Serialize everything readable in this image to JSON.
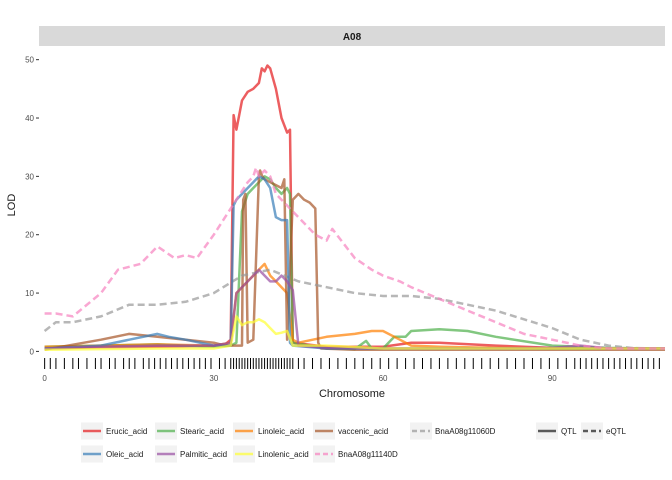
{
  "chart_data": {
    "type": "line",
    "facet_title": "A08",
    "xlabel": "Chromosome",
    "ylabel": "LOD",
    "xlim": [
      -1,
      110
    ],
    "ylim": [
      -2.5,
      52
    ],
    "x_ticks": [
      0,
      30,
      60,
      90
    ],
    "y_ticks": [
      0,
      10,
      20,
      30,
      40,
      50
    ],
    "grid": false,
    "legend_position": "bottom",
    "linetype_legend": [
      {
        "label": "QTL",
        "dash": "solid"
      },
      {
        "label": "eQTL",
        "dash": "dashed"
      }
    ],
    "rug_markers": [
      0,
      1,
      2,
      3.5,
      5,
      6,
      7.5,
      9,
      10,
      11.5,
      12.5,
      14,
      15,
      16,
      17.5,
      18.5,
      19.5,
      20.5,
      21.5,
      22.5,
      23.5,
      24.5,
      25.5,
      26.5,
      27.5,
      28.5,
      29.5,
      31,
      32,
      33,
      33.5,
      34,
      34.5,
      35,
      35.5,
      36,
      36.5,
      37,
      37.5,
      38,
      38.5,
      39,
      39.5,
      40,
      40.5,
      41,
      41.5,
      42,
      42.5,
      43,
      43.5,
      44,
      45,
      46,
      47.5,
      49,
      50.5,
      52,
      53.5,
      55,
      56.5,
      58,
      59.5,
      61,
      62.5,
      64,
      65.5,
      67,
      68.5,
      70,
      71.5,
      73,
      74.5,
      76,
      77.5,
      79,
      80.5,
      82,
      83.5,
      85,
      86.5,
      88,
      89.5,
      91,
      92.5,
      94,
      95,
      96,
      97,
      98,
      99,
      100,
      101,
      102,
      103,
      104,
      105,
      106,
      107,
      108,
      109
    ],
    "series": [
      {
        "name": "Erucic_acid",
        "color": "#e41a1c",
        "dash": "solid",
        "x": [
          0,
          5,
          10,
          20,
          30,
          32,
          33,
          33.5,
          34,
          35,
          36,
          37,
          38,
          38.5,
          39,
          39.5,
          40,
          41,
          42,
          43,
          43.5,
          44,
          50,
          60,
          65,
          70,
          80,
          90,
          100,
          110
        ],
        "y": [
          0.5,
          0.6,
          0.7,
          0.8,
          1.0,
          1.2,
          2,
          40.5,
          38,
          43,
          44.5,
          45,
          46,
          48.5,
          48,
          49,
          48.5,
          45,
          40,
          37.5,
          38,
          1.5,
          0.8,
          0.8,
          1.5,
          1.5,
          1.0,
          0.6,
          0.5,
          0.5
        ]
      },
      {
        "name": "Stearic_acid",
        "color": "#4daf4a",
        "dash": "solid",
        "x": [
          0,
          10,
          20,
          30,
          33,
          34,
          35,
          36,
          37,
          38,
          39,
          40,
          41,
          42,
          43,
          43.5,
          44,
          50,
          55,
          57,
          58,
          60,
          62,
          64,
          65,
          70,
          75,
          80,
          90,
          100,
          110
        ],
        "y": [
          0.8,
          1.0,
          1.2,
          0.8,
          1.0,
          1.5,
          24,
          27,
          28,
          29,
          30,
          29.5,
          28,
          27,
          28,
          27,
          1.5,
          0.5,
          0.4,
          1.8,
          0.5,
          0.5,
          2.5,
          2.5,
          3.5,
          3.8,
          3.5,
          2.5,
          1.0,
          0.6,
          0.5
        ]
      },
      {
        "name": "Linoleic_acid",
        "color": "#ff7f00",
        "dash": "solid",
        "x": [
          0,
          10,
          20,
          30,
          33,
          34,
          35,
          36,
          37,
          38,
          39,
          40,
          41,
          42,
          43,
          44,
          45,
          50,
          55,
          58,
          60,
          63,
          65,
          70,
          80,
          90,
          100,
          110
        ],
        "y": [
          0.8,
          1.0,
          1.2,
          1.0,
          1.5,
          10,
          11,
          12,
          13,
          14,
          15,
          13,
          12,
          11,
          10,
          2,
          1.5,
          2.5,
          3,
          3.5,
          3.5,
          2,
          1,
          0.8,
          0.6,
          0.5,
          0.5,
          0.5
        ]
      },
      {
        "name": "vaccenic_acid",
        "color": "#a65628",
        "dash": "solid",
        "x": [
          0,
          10,
          15,
          20,
          25,
          30,
          32,
          34,
          35,
          35.2,
          35.6,
          36,
          37,
          38,
          38.2,
          38.6,
          39,
          40,
          41,
          42,
          42.5,
          43,
          44,
          45,
          46,
          47,
          48,
          48.5,
          49,
          55,
          60,
          70,
          80,
          90,
          100,
          110
        ],
        "y": [
          0.3,
          2.0,
          3.0,
          2.5,
          2.0,
          1.5,
          1.0,
          1.0,
          1.0,
          26,
          27,
          1.5,
          2,
          30,
          31,
          30,
          29.5,
          29,
          28.5,
          28,
          29.5,
          2,
          26,
          27,
          26,
          25.5,
          24.5,
          1.5,
          0.5,
          0.3,
          0.3,
          0.3,
          0.3,
          0.3,
          0.3,
          0.3
        ]
      },
      {
        "name": "BnaA08g11060D",
        "color": "#999999",
        "dash": "dashed",
        "x": [
          0,
          2,
          5,
          10,
          15,
          20,
          25,
          30,
          35,
          40,
          45,
          50,
          55,
          60,
          65,
          70,
          75,
          80,
          85,
          90,
          95,
          100,
          105,
          110
        ],
        "y": [
          3.5,
          5,
          5,
          6,
          8,
          8,
          8.5,
          10,
          13,
          14,
          12,
          11,
          10,
          9.5,
          9.5,
          9,
          8,
          7,
          5.5,
          4,
          2,
          1,
          0.5,
          0.5
        ]
      },
      {
        "name": "Oleic_acid",
        "color": "#377eb8",
        "dash": "solid",
        "x": [
          0,
          10,
          15,
          20,
          22,
          25,
          30,
          33,
          33.5,
          34,
          35,
          36,
          37,
          38,
          39,
          40,
          41,
          42,
          43,
          43.5,
          44,
          50,
          60,
          70,
          80,
          90,
          100,
          110
        ],
        "y": [
          0.5,
          1.0,
          2.0,
          3.0,
          2.5,
          2.0,
          1.0,
          1.0,
          25,
          26,
          27,
          28,
          29,
          30,
          29.5,
          28,
          23,
          22.5,
          22.5,
          1.5,
          1.0,
          0.5,
          0.5,
          0.5,
          0.5,
          0.5,
          0.5,
          0.5
        ]
      },
      {
        "name": "Palmitic_acid",
        "color": "#984ea3",
        "dash": "solid",
        "x": [
          0,
          10,
          20,
          30,
          33,
          34,
          35,
          36,
          37,
          38,
          39,
          40,
          41,
          42,
          43,
          44,
          45,
          50,
          60,
          70,
          80,
          90,
          95,
          100,
          110
        ],
        "y": [
          0.5,
          0.8,
          1.0,
          1.0,
          1.5,
          10,
          11,
          12,
          13,
          14,
          13,
          12,
          12,
          13,
          12,
          10.5,
          1.0,
          0.6,
          0.5,
          0.5,
          0.5,
          0.6,
          1.0,
          0.5,
          0.5
        ]
      },
      {
        "name": "Linolenic_acid",
        "color": "#ffff33",
        "dash": "solid",
        "x": [
          0,
          10,
          20,
          30,
          33,
          34,
          35,
          36,
          37,
          38,
          39,
          40,
          41,
          42,
          43,
          44,
          50,
          60,
          70,
          80,
          90,
          100,
          110
        ],
        "y": [
          0.3,
          0.4,
          0.5,
          0.5,
          1.0,
          6,
          4.5,
          5,
          5,
          5.5,
          5,
          4,
          3,
          3.2,
          3.5,
          1.0,
          1.0,
          0.5,
          0.5,
          0.5,
          0.5,
          0.5,
          0.5
        ]
      },
      {
        "name": "BnaA08g11140D",
        "color": "#f781bf",
        "dash": "dashed",
        "x": [
          0,
          2,
          5,
          10,
          13,
          17,
          20,
          23,
          25,
          27,
          30,
          32,
          34,
          36,
          37,
          37.5,
          38,
          39,
          40,
          41,
          42,
          45,
          48,
          50,
          51,
          55,
          58,
          60,
          63,
          65,
          70,
          75,
          80,
          85,
          90,
          95,
          100,
          110
        ],
        "y": [
          6.5,
          6.5,
          6,
          10,
          14,
          15,
          18,
          16,
          16.5,
          16,
          20,
          23,
          26,
          29,
          30,
          31.5,
          30,
          31,
          30,
          27,
          26,
          23,
          20,
          19,
          21,
          16,
          14,
          13,
          12,
          11,
          9,
          7,
          5,
          3,
          2,
          1,
          0.5,
          0.5
        ]
      }
    ]
  }
}
